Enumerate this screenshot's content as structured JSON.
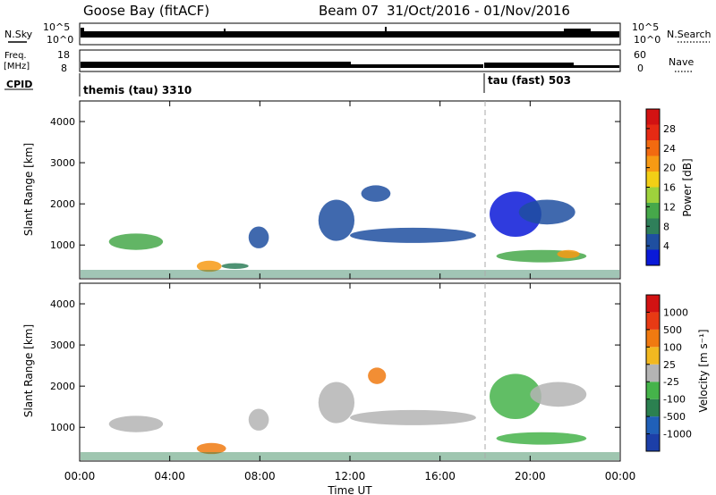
{
  "header": {
    "station": "Goose Bay (fitACF)",
    "beam": "Beam 07",
    "date_range": "31/Oct/2016 - 01/Nov/2016"
  },
  "strip": {
    "nsky_label": "N.Sky",
    "nsky_ticks": [
      "10^5",
      "10^0"
    ],
    "nsearch_label": "N.Search",
    "nsearch_ticks": [
      "10^5",
      "10^0"
    ],
    "freq_label_1": "Freq.",
    "freq_label_2": "[MHz]",
    "freq_ticks": [
      "18",
      "8"
    ],
    "nave_label": "Nave",
    "nave_ticks": [
      "60",
      "0"
    ],
    "cpid_label": "CPID",
    "cpid_segments": [
      {
        "name": "themis (tau) 3310",
        "start_hour": 0,
        "end_hour": 18.0
      },
      {
        "name": "tau (fast) 503",
        "start_hour": 18.0,
        "end_hour": 24
      }
    ]
  },
  "x_axis": {
    "label": "Time UT",
    "ticks": [
      "00:00",
      "04:00",
      "08:00",
      "12:00",
      "16:00",
      "20:00",
      "00:00"
    ]
  },
  "power_panel": {
    "ylabel": "Slant Range [km]",
    "yticks": [
      "1000",
      "2000",
      "3000",
      "4000"
    ],
    "colorbar_label": "Power [dB]",
    "colorbar_ticks": [
      "4",
      "8",
      "12",
      "16",
      "20",
      "24",
      "28"
    ],
    "colors": [
      "#0a19d8",
      "#1f4fa0",
      "#2f7f5a",
      "#46a84a",
      "#9ed23c",
      "#f2cf16",
      "#f79a14",
      "#f26a10",
      "#e62a14",
      "#d21212"
    ]
  },
  "velocity_panel": {
    "ylabel": "Slant Range [km]",
    "yticks": [
      "1000",
      "2000",
      "3000",
      "4000"
    ],
    "colorbar_label": "Velocity [m s⁻¹]",
    "colorbar_ticks": [
      "1000",
      "500",
      "100",
      "25",
      "-25",
      "-100",
      "-500",
      "-1000"
    ],
    "colors": [
      "#1c3fa8",
      "#2060b8",
      "#2b8050",
      "#45b34a",
      "#b4b4b4",
      "#f2b820",
      "#f07a10",
      "#e83a14",
      "#d21212"
    ]
  },
  "chart_data": {
    "type": "heatmap",
    "x_range_hours": [
      0,
      24
    ],
    "y_range_km": [
      180,
      4500
    ],
    "marker_hour": 18.0,
    "power_blobs": [
      {
        "t0": 1.3,
        "t1": 3.7,
        "r0": 880,
        "r1": 1280,
        "level": 3
      },
      {
        "t0": 5.2,
        "t1": 6.3,
        "r0": 350,
        "r1": 620,
        "level": 6
      },
      {
        "t0": 6.3,
        "t1": 7.5,
        "r0": 420,
        "r1": 560,
        "level": 2
      },
      {
        "t0": 7.5,
        "t1": 8.4,
        "r0": 920,
        "r1": 1450,
        "level": 1
      },
      {
        "t0": 10.6,
        "t1": 12.2,
        "r0": 1100,
        "r1": 2100,
        "level": 1
      },
      {
        "t0": 12.0,
        "t1": 17.6,
        "r0": 1050,
        "r1": 1420,
        "level": 1
      },
      {
        "t0": 12.5,
        "t1": 13.8,
        "r0": 2050,
        "r1": 2450,
        "level": 1
      },
      {
        "t0": 18.2,
        "t1": 20.5,
        "r0": 1200,
        "r1": 2300,
        "level": 0
      },
      {
        "t0": 19.5,
        "t1": 22.0,
        "r0": 1500,
        "r1": 2100,
        "level": 1
      },
      {
        "t0": 18.5,
        "t1": 22.5,
        "r0": 580,
        "r1": 880,
        "level": 3
      },
      {
        "t0": 21.2,
        "t1": 22.2,
        "r0": 680,
        "r1": 880,
        "level": 6
      }
    ],
    "velocity_blobs": [
      {
        "t0": 1.3,
        "t1": 3.7,
        "r0": 880,
        "r1": 1280,
        "level": 4
      },
      {
        "t0": 5.2,
        "t1": 6.5,
        "r0": 350,
        "r1": 620,
        "level": 6
      },
      {
        "t0": 7.5,
        "t1": 8.4,
        "r0": 920,
        "r1": 1450,
        "level": 4
      },
      {
        "t0": 10.6,
        "t1": 12.2,
        "r0": 1100,
        "r1": 2100,
        "level": 4
      },
      {
        "t0": 12.0,
        "t1": 17.6,
        "r0": 1050,
        "r1": 1420,
        "level": 4
      },
      {
        "t0": 12.8,
        "t1": 13.6,
        "r0": 2050,
        "r1": 2450,
        "level": 6
      },
      {
        "t0": 18.2,
        "t1": 20.5,
        "r0": 1200,
        "r1": 2300,
        "level": 3
      },
      {
        "t0": 20.0,
        "t1": 22.5,
        "r0": 1500,
        "r1": 2100,
        "level": 4
      },
      {
        "t0": 18.5,
        "t1": 22.5,
        "r0": 580,
        "r1": 880,
        "level": 3
      }
    ]
  }
}
